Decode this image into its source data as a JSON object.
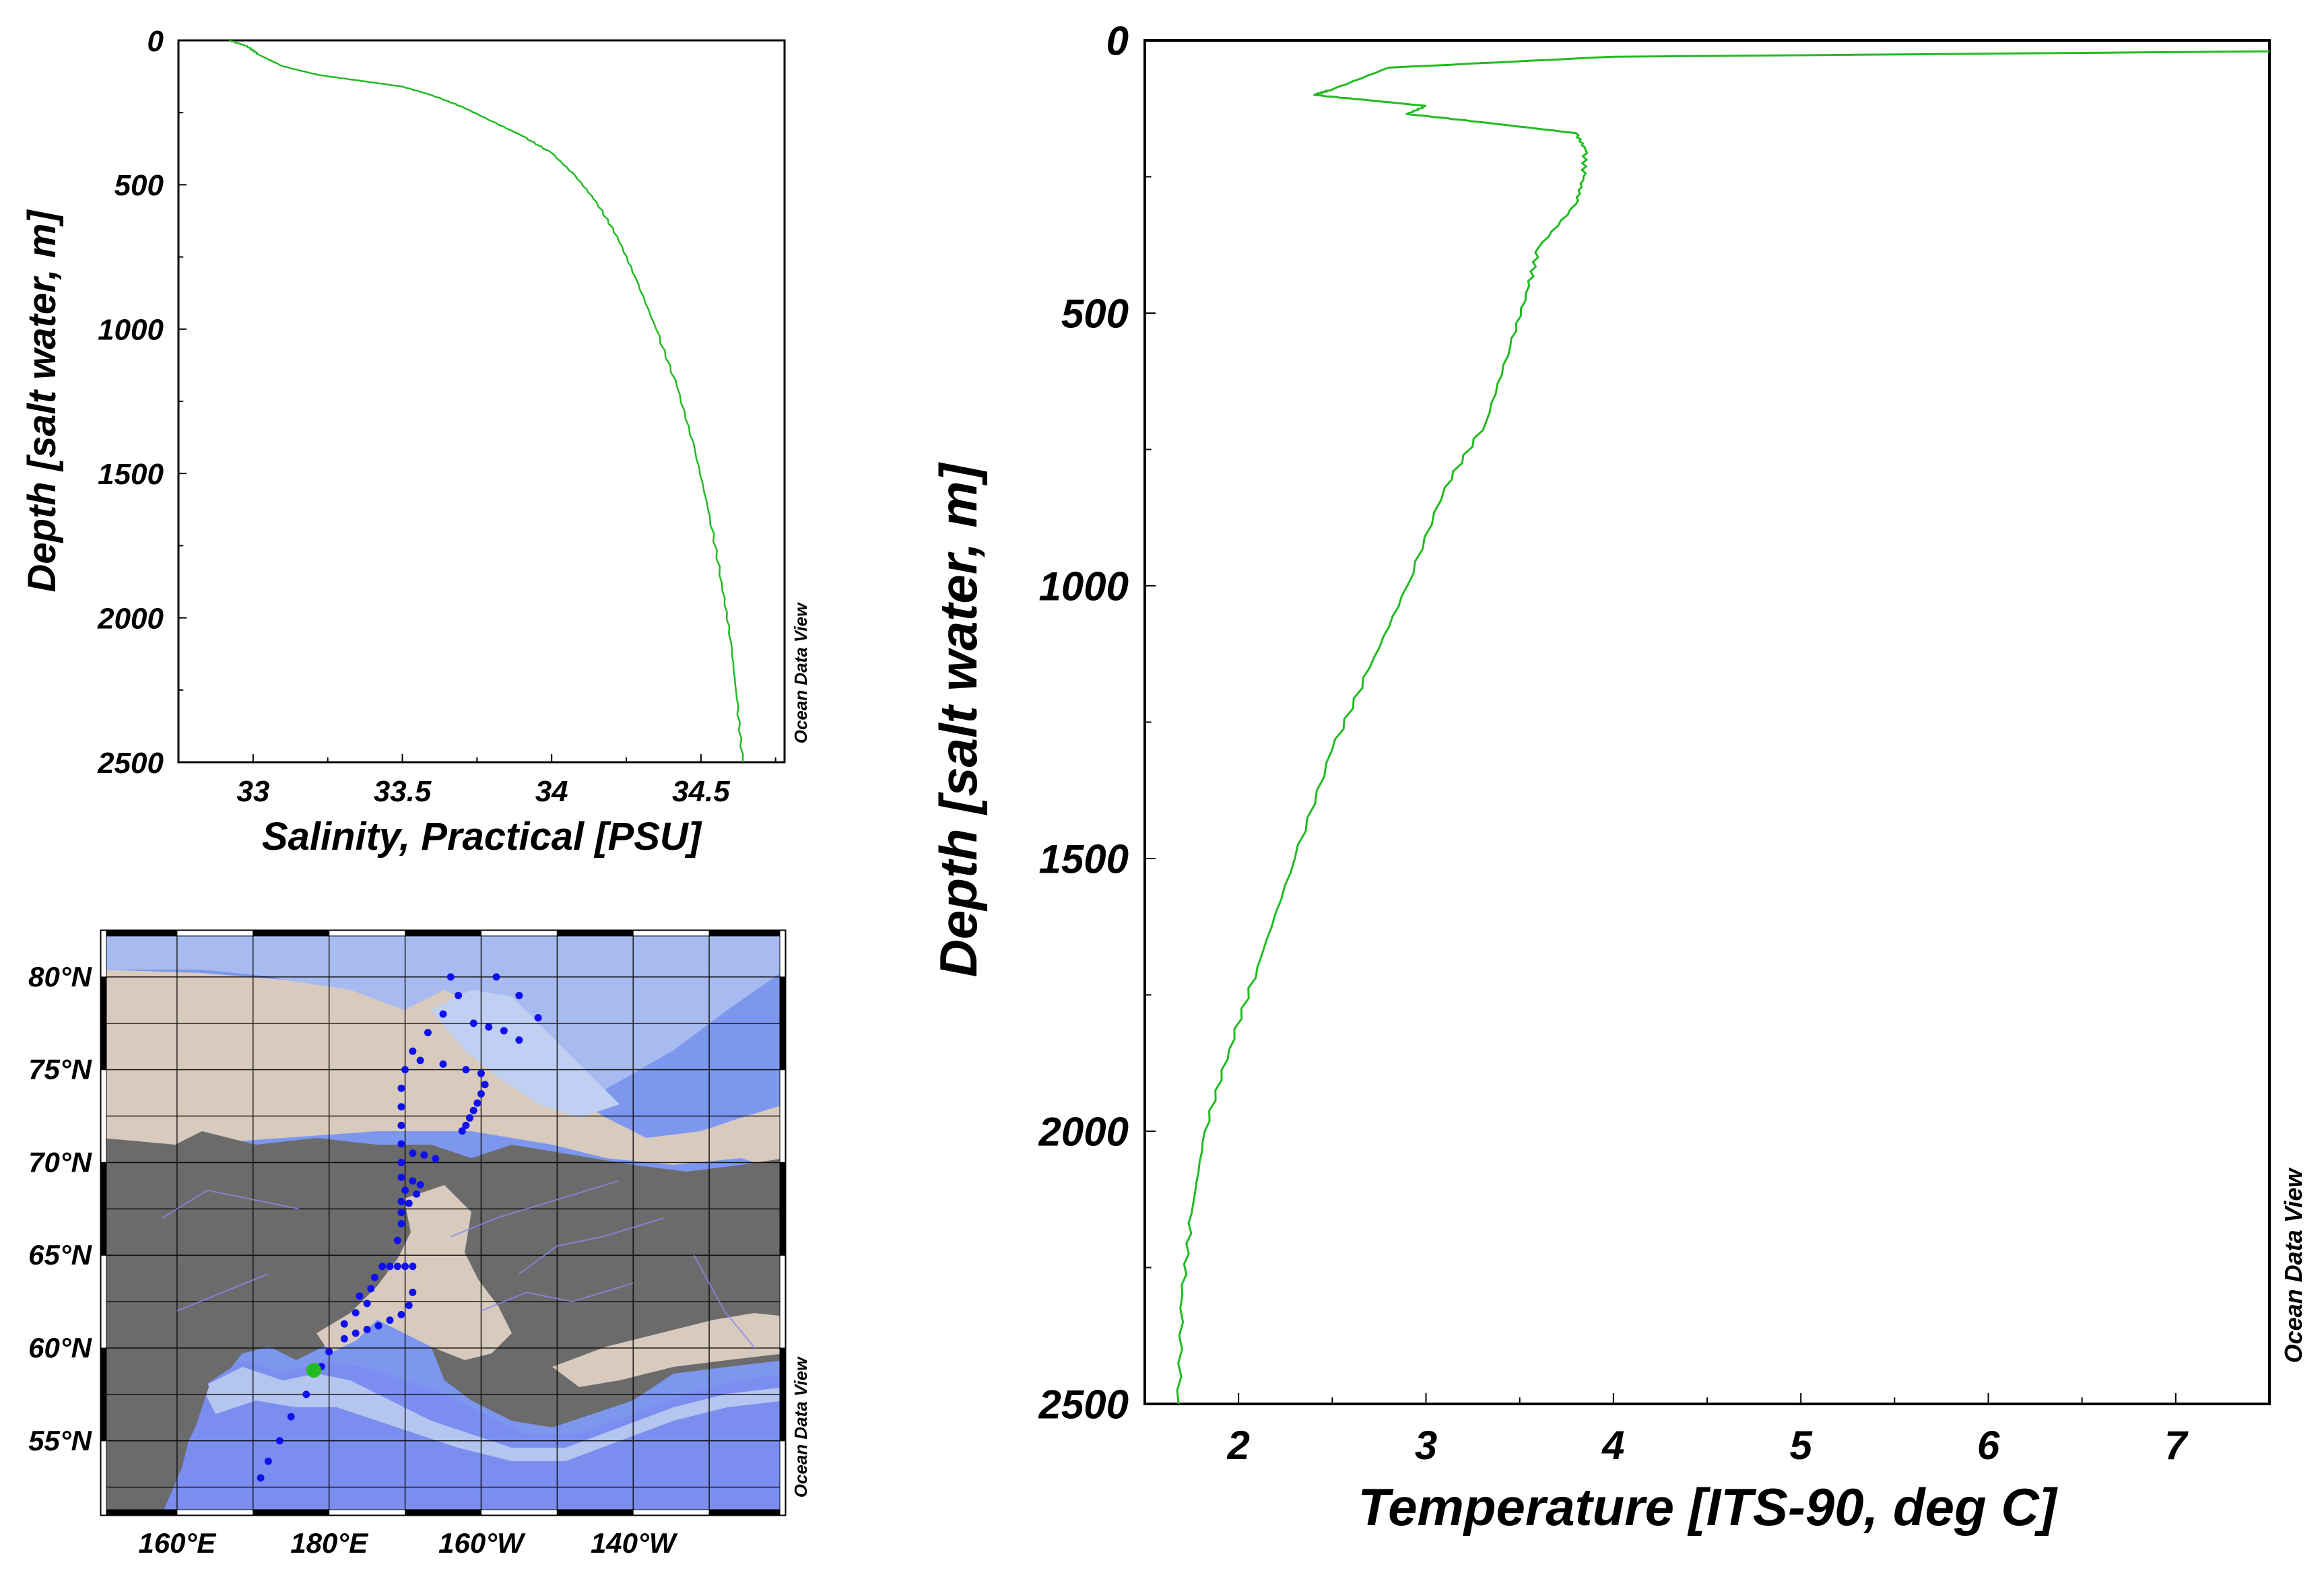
{
  "chart_data": [
    {
      "type": "line",
      "name_hint": "salinity-profile",
      "xlabel": "Salinity, Practical [PSU]",
      "ylabel": "Depth [salt water, m]",
      "watermark": "Ocean Data View",
      "xlim": [
        32.75,
        34.78
      ],
      "ylim": [
        2500,
        0
      ],
      "y_inverted": true,
      "xticks": [
        33,
        33.5,
        34,
        34.5
      ],
      "xtick_labels": [
        "33",
        "33.5",
        "34",
        "34.5"
      ],
      "yticks": [
        0,
        500,
        1000,
        1500,
        2000,
        2500
      ],
      "ytick_labels": [
        "0",
        "500",
        "1000",
        "1500",
        "2000",
        "2500"
      ],
      "color": "#22bb22",
      "series": [
        {
          "x": [
            32.92,
            32.98,
            33.02,
            33.1,
            33.22,
            33.36,
            33.5,
            33.6,
            33.7,
            33.8,
            33.9,
            34.0,
            34.08,
            34.15,
            34.22,
            34.28,
            34.35,
            34.42,
            34.48,
            34.53,
            34.57,
            34.6,
            34.62,
            34.64
          ],
          "y": [
            0,
            20,
            50,
            90,
            120,
            140,
            160,
            190,
            230,
            280,
            330,
            390,
            470,
            560,
            680,
            820,
            1000,
            1200,
            1420,
            1650,
            1880,
            2080,
            2280,
            2500
          ]
        }
      ]
    },
    {
      "type": "line",
      "name_hint": "temperature-profile",
      "xlabel": "Temperature [ITS-90, deg C]",
      "ylabel": "Depth [salt water, m]",
      "watermark": "Ocean Data View",
      "xlim": [
        1.5,
        7.5
      ],
      "ylim": [
        2500,
        0
      ],
      "y_inverted": true,
      "xticks": [
        2,
        3,
        4,
        5,
        6,
        7
      ],
      "xtick_labels": [
        "2",
        "3",
        "4",
        "5",
        "6",
        "7"
      ],
      "yticks": [
        0,
        500,
        1000,
        1500,
        2000,
        2500
      ],
      "ytick_labels": [
        "0",
        "500",
        "1000",
        "1500",
        "2000",
        "2500"
      ],
      "color": "#22bb22",
      "series": [
        {
          "x": [
            7.5,
            4.0,
            2.8,
            2.5,
            2.4,
            2.7,
            3.0,
            2.9,
            3.3,
            3.8,
            3.85,
            3.84,
            3.8,
            3.6,
            3.55,
            3.45,
            3.32,
            3.1,
            2.9,
            2.7,
            2.5,
            2.3,
            2.1,
            1.95,
            1.82,
            1.75,
            1.7,
            1.68
          ],
          "y": [
            20,
            30,
            50,
            90,
            100,
            110,
            120,
            135,
            150,
            170,
            200,
            250,
            300,
            380,
            450,
            560,
            700,
            820,
            1000,
            1150,
            1300,
            1500,
            1700,
            1850,
            2000,
            2150,
            2300,
            2500
          ]
        }
      ]
    }
  ],
  "map": {
    "name_hint": "station-map",
    "watermark": "Ocean Data View",
    "lat_labels": [
      "80°N",
      "75°N",
      "70°N",
      "65°N",
      "60°N",
      "55°N"
    ],
    "lat_values": [
      80,
      75,
      70,
      65,
      60,
      55
    ],
    "lon_labels": [
      "160°E",
      "180°E",
      "160°W",
      "140°W"
    ],
    "lon_values": [
      160,
      180,
      200,
      220
    ],
    "lon_range": [
      150,
      240
    ],
    "lat_range": [
      51,
      82.5
    ],
    "colors": {
      "ocean_deep": "#6f8cf0",
      "ocean_mid": "#8fa6ee",
      "shelf": "#b8c8f2",
      "shelf_light": "#cfd9ee",
      "shallow": "#ddd0c4",
      "land": "#6a6a6a",
      "river": "#8a8ae8",
      "station": "#1010ee",
      "current_station": "#22bb22"
    },
    "stations": [
      [
        196,
        80
      ],
      [
        202,
        80
      ],
      [
        205,
        79
      ],
      [
        207.5,
        77.8
      ],
      [
        197,
        79
      ],
      [
        195,
        78
      ],
      [
        193,
        77
      ],
      [
        191,
        76
      ],
      [
        190,
        75
      ],
      [
        189.5,
        74
      ],
      [
        189.5,
        73
      ],
      [
        189.5,
        72
      ],
      [
        189.5,
        71
      ],
      [
        199,
        77.5
      ],
      [
        201,
        77.3
      ],
      [
        203,
        77.1
      ],
      [
        205,
        76.6
      ],
      [
        192,
        75.5
      ],
      [
        195,
        75.3
      ],
      [
        198,
        75
      ],
      [
        200,
        74.8
      ],
      [
        200.5,
        74.2
      ],
      [
        200,
        73.7
      ],
      [
        199.5,
        73.2
      ],
      [
        199,
        72.8
      ],
      [
        198.5,
        72.4
      ],
      [
        198,
        72
      ],
      [
        197.5,
        71.7
      ],
      [
        191,
        70.5
      ],
      [
        192.5,
        70.4
      ],
      [
        194,
        70.2
      ],
      [
        189.5,
        70
      ],
      [
        189.5,
        69.2
      ],
      [
        190,
        68.5
      ],
      [
        189.5,
        67.9
      ],
      [
        189.5,
        67.3
      ],
      [
        189.5,
        66.7
      ],
      [
        191,
        69
      ],
      [
        192,
        68.8
      ],
      [
        191.5,
        68.3
      ],
      [
        190.5,
        67.8
      ],
      [
        189,
        65.8
      ],
      [
        187,
        64.4
      ],
      [
        188,
        64.4
      ],
      [
        189,
        64.4
      ],
      [
        190,
        64.4
      ],
      [
        191,
        64.4
      ],
      [
        186,
        63.8
      ],
      [
        185.5,
        63.2
      ],
      [
        191,
        63
      ],
      [
        190.5,
        62.3
      ],
      [
        189.5,
        61.8
      ],
      [
        188,
        61.5
      ],
      [
        186.5,
        61.2
      ],
      [
        185,
        61
      ],
      [
        183.5,
        60.8
      ],
      [
        182,
        60.5
      ],
      [
        185,
        62.4
      ],
      [
        183.5,
        61.9
      ],
      [
        182,
        61.3
      ],
      [
        184,
        62.8
      ],
      [
        180,
        59.8
      ],
      [
        179,
        59
      ],
      [
        177,
        57.5
      ],
      [
        175,
        56.3
      ],
      [
        173.5,
        55
      ],
      [
        172,
        53.9
      ],
      [
        171,
        53
      ]
    ],
    "current_station": [
      178,
      58.8
    ]
  }
}
